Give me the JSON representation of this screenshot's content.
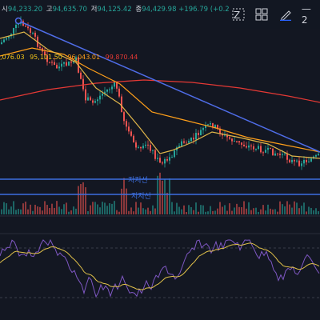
{
  "ohlc": {
    "open_label": "시",
    "open": "94,233.20",
    "high_label": "고",
    "high": "94,635.70",
    "low_label": "저",
    "low": "94,125.42",
    "close_label": "종",
    "close": "94,429.98",
    "change": "+196.79 (+0.2"
  },
  "ma_values": [
    {
      "value": ",076.03",
      "color": "#f0c419"
    },
    {
      "value": "95,101.50",
      "color": "#f0c419"
    },
    {
      "value": "96,043.01",
      "color": "#ff9f1a"
    },
    {
      "value": "99,870.44",
      "color": "#e53935"
    }
  ],
  "toolbar": {
    "zoom_label": "Z",
    "line_label": "— 2"
  },
  "support_levels": [
    {
      "label": "지지선"
    },
    {
      "label": "지지선"
    }
  ],
  "colors": {
    "background": "#131722",
    "up": "#26a69a",
    "down": "#ef5350",
    "trendline": "#4f6de8",
    "support": "#3d6fe0",
    "ma_red": "#e53935",
    "ma_orange": "#ff9f1a",
    "ma_yellow": "#e0b64a",
    "rsi": "#7e57c2",
    "rsi_signal": "#e0c04a"
  },
  "icons": [
    "zoom-icon",
    "grid-icon",
    "pencil-icon",
    "line-tool-icon"
  ]
}
